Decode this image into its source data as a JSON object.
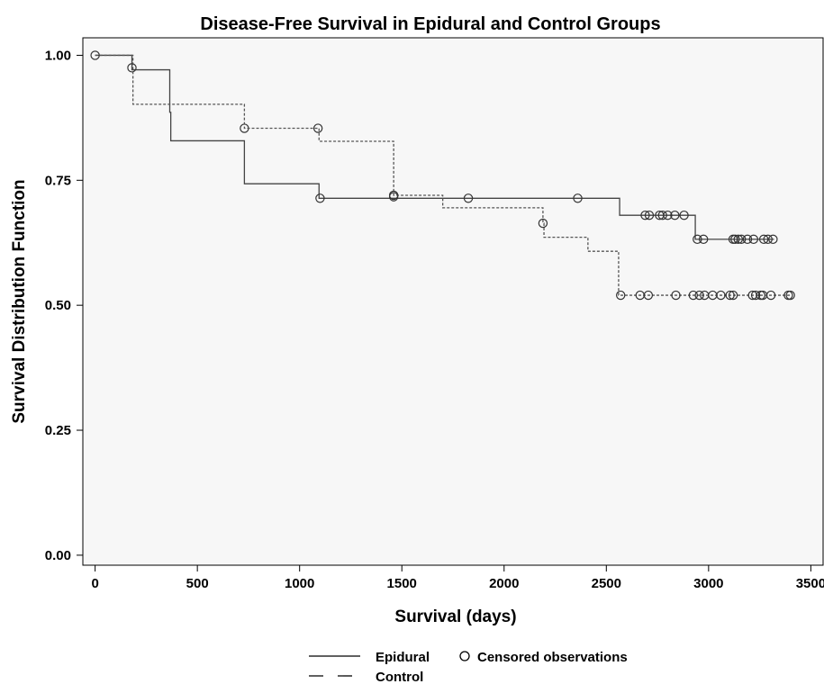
{
  "chart_data": {
    "type": "line",
    "step": true,
    "title": "Disease-Free Survival in Epidural and Control Groups",
    "xlabel": "Survival (days)",
    "ylabel": "Survival Distribution Function",
    "xlim": [
      -60,
      3560
    ],
    "ylim": [
      -0.02,
      1.035
    ],
    "xticks": [
      0,
      500,
      1000,
      1500,
      2000,
      2500,
      3000,
      3500
    ],
    "xtick_labels": [
      "0",
      "500",
      "1000",
      "1500",
      "2000",
      "2500",
      "3000",
      "3500"
    ],
    "yticks": [
      0,
      0.25,
      0.5,
      0.75,
      1.0
    ],
    "ytick_labels": [
      "0.00",
      "0.25",
      "0.50",
      "0.75",
      "1.00"
    ],
    "grid": false,
    "legend_position": "bottom",
    "legend": {
      "epidural": "Epidural",
      "control": "Control",
      "censored": "Censored observations"
    },
    "series": [
      {
        "name": "Epidural",
        "line_style": "solid",
        "color": "#444444",
        "steps": [
          [
            0,
            1.0
          ],
          [
            180,
            0.971
          ],
          [
            365,
            0.886
          ],
          [
            370,
            0.829
          ],
          [
            730,
            0.743
          ],
          [
            1095,
            0.714
          ],
          [
            2565,
            0.68
          ],
          [
            2935,
            0.632
          ]
        ],
        "end_x": 3320,
        "censored": [
          [
            0,
            1.0
          ],
          [
            180,
            0.975
          ],
          [
            730,
            0.854
          ],
          [
            1100,
            0.714
          ],
          [
            1460,
            0.717
          ],
          [
            2360,
            0.714
          ],
          [
            2690,
            0.68
          ],
          [
            2710,
            0.68
          ],
          [
            2760,
            0.68
          ],
          [
            2775,
            0.68
          ],
          [
            2800,
            0.68
          ],
          [
            2835,
            0.68
          ],
          [
            2880,
            0.68
          ],
          [
            2945,
            0.632
          ],
          [
            2975,
            0.632
          ],
          [
            3120,
            0.632
          ],
          [
            3130,
            0.632
          ],
          [
            3145,
            0.632
          ],
          [
            3160,
            0.632
          ],
          [
            3190,
            0.632
          ],
          [
            3220,
            0.632
          ],
          [
            3270,
            0.632
          ],
          [
            3290,
            0.632
          ],
          [
            3315,
            0.632
          ]
        ]
      },
      {
        "name": "Control",
        "line_style": "dashed",
        "color": "#555555",
        "steps": [
          [
            0,
            1.0
          ],
          [
            185,
            0.902
          ],
          [
            730,
            0.854
          ],
          [
            1095,
            0.828
          ],
          [
            1460,
            0.72
          ],
          [
            1700,
            0.695
          ],
          [
            2190,
            0.664
          ],
          [
            2195,
            0.636
          ],
          [
            2410,
            0.608
          ],
          [
            2560,
            0.52
          ]
        ],
        "end_x": 3400,
        "censored": [
          [
            1090,
            0.854
          ],
          [
            1460,
            0.72
          ],
          [
            1825,
            0.714
          ],
          [
            2190,
            0.664
          ],
          [
            2570,
            0.52
          ],
          [
            2665,
            0.52
          ],
          [
            2705,
            0.52
          ],
          [
            2840,
            0.52
          ],
          [
            2925,
            0.52
          ],
          [
            2955,
            0.52
          ],
          [
            2980,
            0.52
          ],
          [
            3020,
            0.52
          ],
          [
            3060,
            0.52
          ],
          [
            3105,
            0.52
          ],
          [
            3120,
            0.52
          ],
          [
            3215,
            0.52
          ],
          [
            3230,
            0.52
          ],
          [
            3255,
            0.52
          ],
          [
            3265,
            0.52
          ],
          [
            3305,
            0.52
          ],
          [
            3390,
            0.52
          ],
          [
            3400,
            0.52
          ]
        ]
      }
    ]
  }
}
